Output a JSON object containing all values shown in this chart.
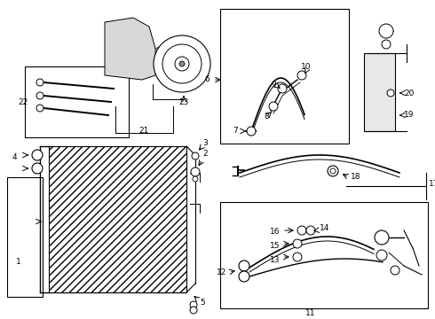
{
  "background_color": "#ffffff",
  "line_color": "#000000",
  "fig_width": 4.9,
  "fig_height": 3.6,
  "dpi": 100,
  "fs": 6.5
}
